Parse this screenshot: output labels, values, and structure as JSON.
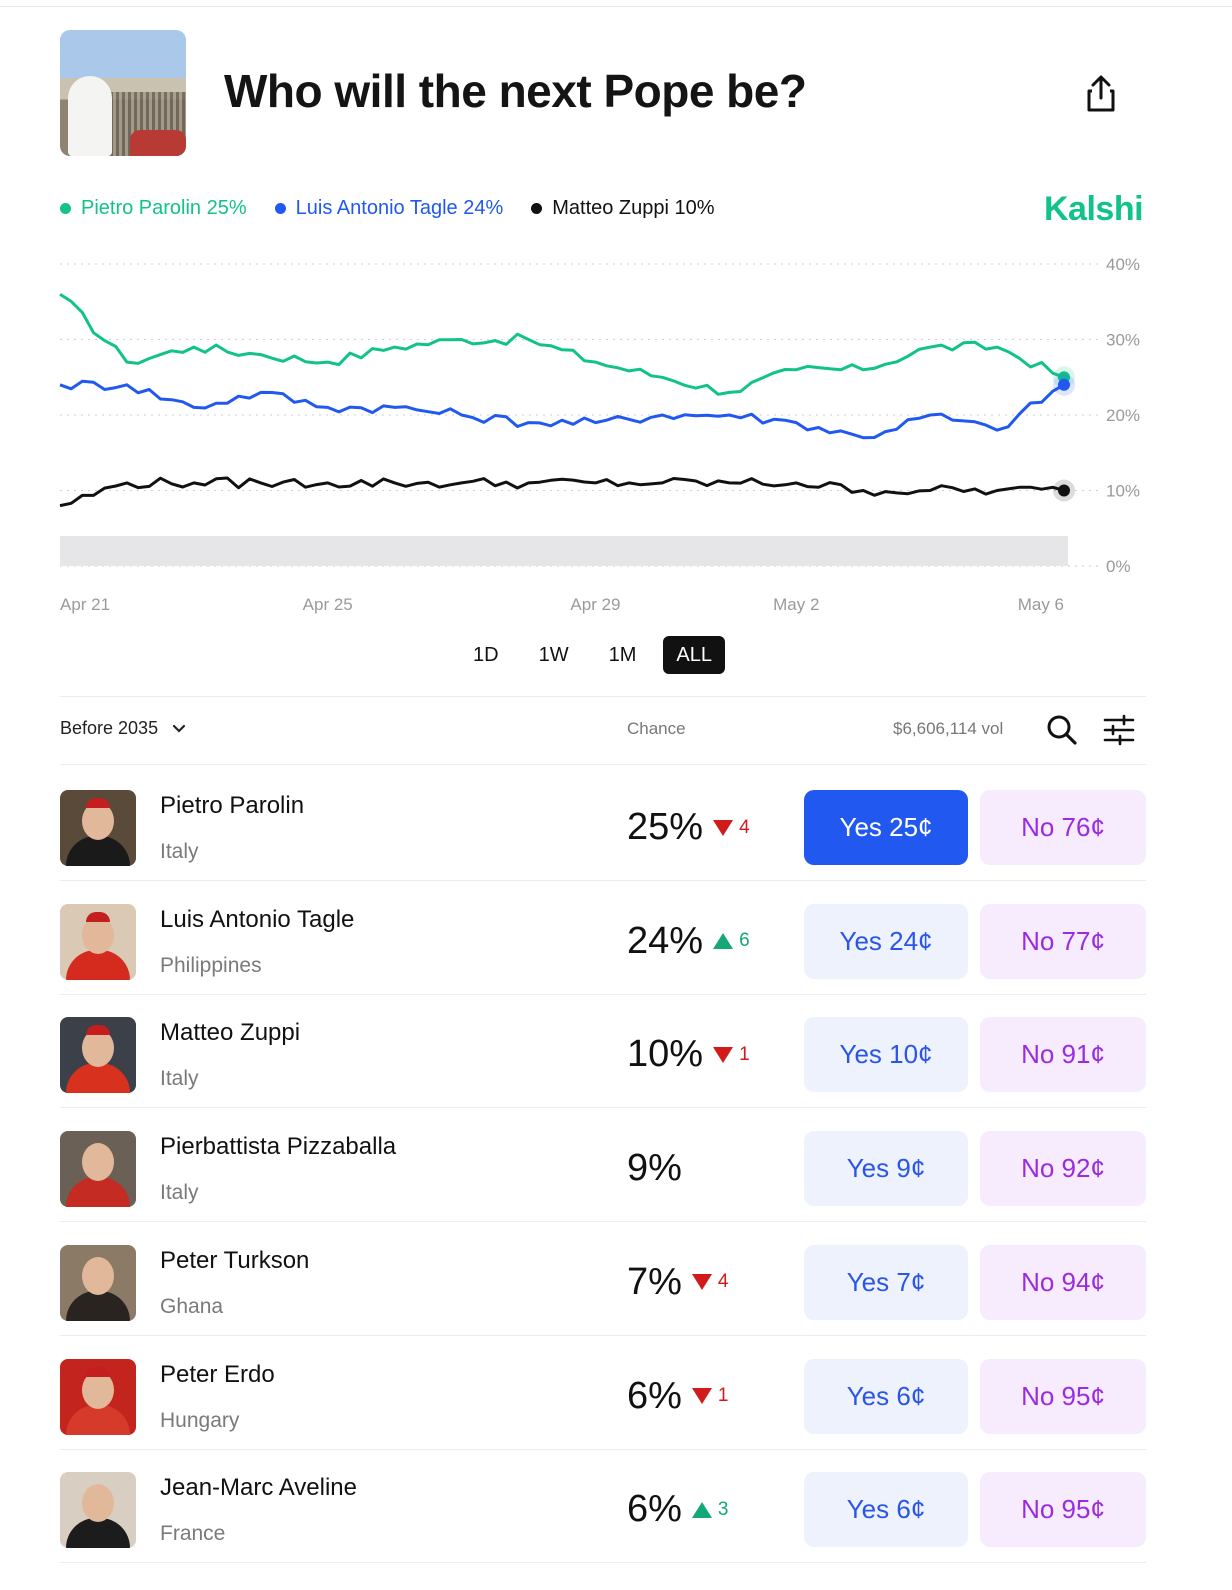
{
  "header": {
    "title": "Who will the next Pope be?"
  },
  "legend": [
    {
      "label": "Pietro Parolin 25%",
      "color": "#12c28b"
    },
    {
      "label": "Luis Antonio Tagle 24%",
      "color": "#2058f0"
    },
    {
      "label": "Matteo Zuppi 10%",
      "color": "#111111"
    }
  ],
  "brand": "Kalshi",
  "chart_data": {
    "type": "line",
    "x": [
      "Apr 21",
      "Apr 22",
      "Apr 23",
      "Apr 24",
      "Apr 25",
      "Apr 26",
      "Apr 27",
      "Apr 28",
      "Apr 29",
      "Apr 30",
      "May 1",
      "May 2",
      "May 3",
      "May 4",
      "May 5",
      "May 6"
    ],
    "x_tick_labels": [
      "Apr 21",
      "Apr 25",
      "Apr 29",
      "May 2",
      "May 6"
    ],
    "y_tick_labels": [
      "40%",
      "30%",
      "20%",
      "10%",
      "0%"
    ],
    "ylim": [
      0,
      40
    ],
    "grid": true,
    "series": [
      {
        "name": "Pietro Parolin",
        "color": "#12c28b",
        "values": [
          36,
          27,
          29,
          28,
          27,
          29,
          30,
          30,
          27,
          25,
          23,
          26,
          26,
          29,
          29,
          25
        ]
      },
      {
        "name": "Luis Antonio Tagle",
        "color": "#2058f0",
        "values": [
          24,
          24,
          21,
          23,
          21,
          21,
          20,
          19,
          19,
          20,
          20,
          19,
          17,
          20,
          18,
          24
        ]
      },
      {
        "name": "Matteo Zuppi",
        "color": "#111111",
        "values": [
          8,
          11,
          11,
          11,
          11,
          11,
          11,
          11,
          11,
          11,
          11,
          11,
          10,
          10,
          10,
          10
        ]
      }
    ]
  },
  "ranges": [
    "1D",
    "1W",
    "1M",
    "ALL"
  ],
  "table": {
    "filter_label": "Before 2035",
    "chance_header": "Chance",
    "volume": "$6,606,114 vol",
    "rows": [
      {
        "name": "Pietro Parolin",
        "country": "Italy",
        "chance": "25%",
        "delta": "4",
        "dir": "down",
        "yes": "Yes 25¢",
        "no": "No 76¢"
      },
      {
        "name": "Luis Antonio Tagle",
        "country": "Philippines",
        "chance": "24%",
        "delta": "6",
        "dir": "up",
        "yes": "Yes 24¢",
        "no": "No 77¢"
      },
      {
        "name": "Matteo Zuppi",
        "country": "Italy",
        "chance": "10%",
        "delta": "1",
        "dir": "down",
        "yes": "Yes 10¢",
        "no": "No 91¢"
      },
      {
        "name": "Pierbattista Pizzaballa",
        "country": "Italy",
        "chance": "9%",
        "delta": "",
        "dir": "none",
        "yes": "Yes 9¢",
        "no": "No 92¢"
      },
      {
        "name": "Peter Turkson",
        "country": "Ghana",
        "chance": "7%",
        "delta": "4",
        "dir": "down",
        "yes": "Yes 7¢",
        "no": "No 94¢"
      },
      {
        "name": "Peter Erdo",
        "country": "Hungary",
        "chance": "6%",
        "delta": "1",
        "dir": "down",
        "yes": "Yes 6¢",
        "no": "No 95¢"
      },
      {
        "name": "Jean-Marc Aveline",
        "country": "France",
        "chance": "6%",
        "delta": "3",
        "dir": "up",
        "yes": "Yes 6¢",
        "no": "No 95¢"
      }
    ]
  }
}
